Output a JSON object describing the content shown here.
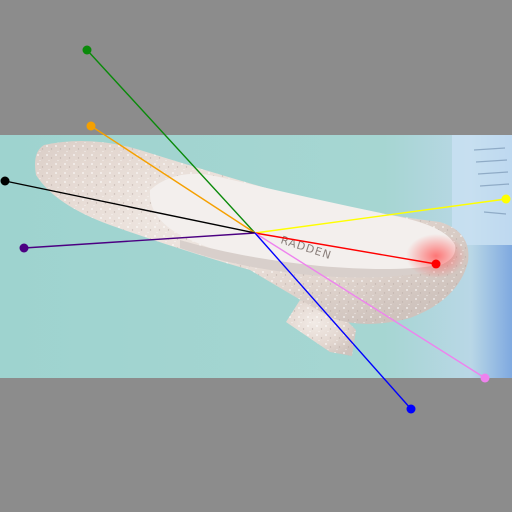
{
  "scene": {
    "subject": "glitter-high-heel-shoe",
    "insole_print": "RADDEN",
    "colors": {
      "letterbox": "#8c8c8c",
      "backdrop": "#9ed3cf",
      "shoe_glitter": "#e6dcd6",
      "shoe_lining": "#f1ecea"
    }
  },
  "keypoint_hub": {
    "color": "#000000"
  },
  "keypoint_rays": [
    {
      "name": "green",
      "color": "#0a8a0a"
    },
    {
      "name": "orange",
      "color": "#f5a000"
    },
    {
      "name": "black",
      "color": "#000000"
    },
    {
      "name": "purple",
      "color": "#4b0082"
    },
    {
      "name": "yellow",
      "color": "#ffff00"
    },
    {
      "name": "red",
      "color": "#ff0000"
    },
    {
      "name": "pink",
      "color": "#ee82ee"
    },
    {
      "name": "blue",
      "color": "#0000ff"
    }
  ]
}
